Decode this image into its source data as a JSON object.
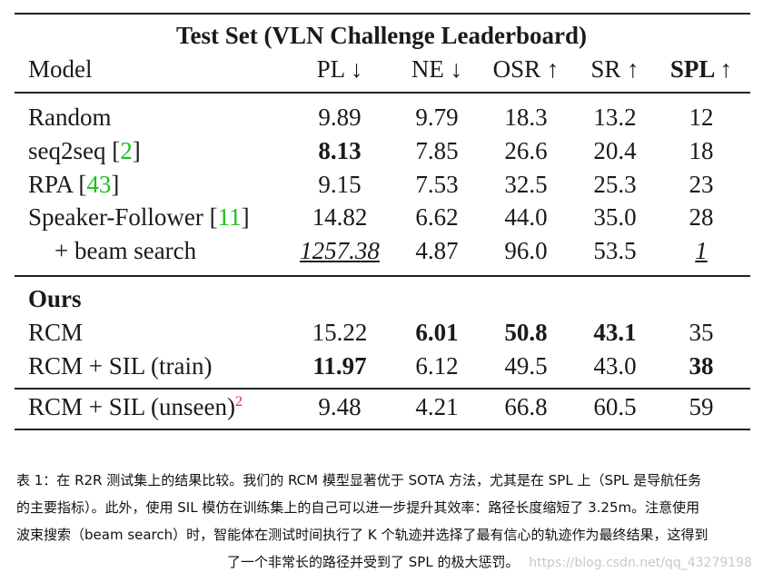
{
  "table": {
    "title": "Test Set (VLN Challenge Leaderboard)",
    "headers": [
      "Model",
      "PL ↓",
      "NE ↓",
      "OSR ↑",
      "SR ↑",
      "SPL ↑"
    ],
    "rows": [
      {
        "model": "Random",
        "ref": "",
        "sup": "",
        "values": [
          "9.89",
          "9.79",
          "18.3",
          "13.2",
          "12"
        ]
      },
      {
        "model": "seq2seq ",
        "ref": "2",
        "sup": "",
        "values": [
          "8.13",
          "7.85",
          "26.6",
          "20.4",
          "18"
        ]
      },
      {
        "model": "RPA ",
        "ref": "43",
        "sup": "",
        "values": [
          "9.15",
          "7.53",
          "32.5",
          "25.3",
          "23"
        ]
      },
      {
        "model": "Speaker-Follower ",
        "ref": "11",
        "sup": "",
        "values": [
          "14.82",
          "6.62",
          "44.0",
          "35.0",
          "28"
        ]
      },
      {
        "model": "+ beam search",
        "ref": "",
        "sup": "",
        "values": [
          "1257.38",
          "4.87",
          "96.0",
          "53.5",
          "1"
        ]
      },
      {
        "model": "Ours",
        "ref": "",
        "sup": "",
        "values": [
          "",
          "",
          "",
          "",
          ""
        ]
      },
      {
        "model": "RCM",
        "ref": "",
        "sup": "",
        "values": [
          "15.22",
          "6.01",
          "50.8",
          "43.1",
          "35"
        ]
      },
      {
        "model": "RCM + SIL (train)",
        "ref": "",
        "sup": "",
        "values": [
          "11.97",
          "6.12",
          "49.5",
          "43.0",
          "38"
        ]
      },
      {
        "model": "RCM + SIL (unseen)",
        "ref": "",
        "sup": "2",
        "values": [
          "9.48",
          "4.21",
          "66.8",
          "60.5",
          "59"
        ]
      }
    ]
  },
  "caption": {
    "lines": [
      "表 1：在 R2R 测试集上的结果比较。我们的 RCM 模型显著优于 SOTA 方法，尤其是在 SPL 上（SPL 是导航任务",
      "的主要指标）。此外，使用 SIL 模仿在训练集上的自己可以进一步提升其效率：路径长度缩短了 3.25m。注意使用",
      "波束搜索（beam search）时，智能体在测试时间执行了 K 个轨迹并选择了最有信心的轨迹作为最终结果，这得到",
      "了一个非常长的路径并受到了 SPL 的极大惩罚。"
    ]
  },
  "watermark": "https://blog.csdn.net/qq_43279198",
  "colors": {
    "ref_link": "#1fbf1f",
    "footnote": "#d0342c"
  }
}
